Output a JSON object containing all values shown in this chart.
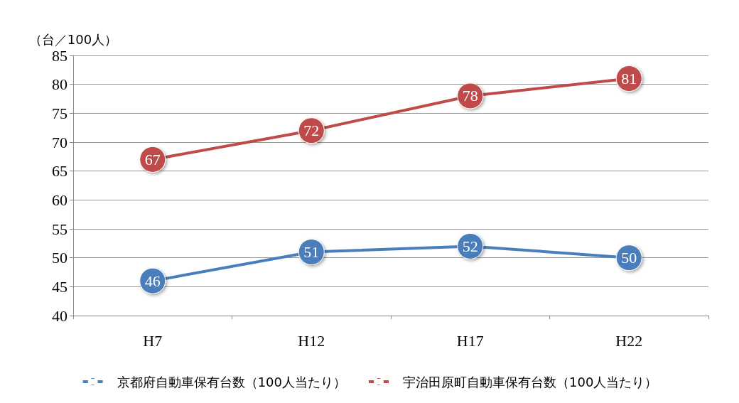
{
  "chart_data": {
    "type": "line",
    "ylabel": "（台／100人）",
    "categories": [
      "H7",
      "H12",
      "H17",
      "H22"
    ],
    "series": [
      {
        "name": "京都府自動車保有台数（100人当たり）",
        "color": "#4a7ebb",
        "values": [
          46,
          51,
          52,
          50
        ]
      },
      {
        "name": "宇治田原町自動車保有台数（100人当たり）",
        "color": "#be4b48",
        "values": [
          67,
          72,
          78,
          81
        ]
      }
    ],
    "ylim": [
      40,
      85
    ],
    "yticks": [
      40,
      45,
      50,
      55,
      60,
      65,
      70,
      75,
      80,
      85
    ],
    "grid": "y",
    "legend": "bottom",
    "marker": "circle",
    "line_style": "solid",
    "data_labels": true
  }
}
